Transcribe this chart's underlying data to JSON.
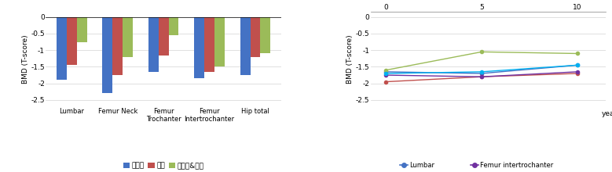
{
  "bar": {
    "categories": [
      "Lumbar",
      "Femur Neck",
      "Femur\nTrochanter",
      "Femur\nIntertrochanter",
      "Hip total"
    ],
    "series": {
      "저체중": [
        -1.9,
        -2.3,
        -1.65,
        -1.85,
        -1.75
      ],
      "정상": [
        -1.45,
        -1.75,
        -1.15,
        -1.65,
        -1.2
      ],
      "과체중&비만": [
        -0.75,
        -1.2,
        -0.55,
        -1.5,
        -1.1
      ]
    },
    "colors": {
      "저체중": "#4472c4",
      "정상": "#c0504d",
      "과체중&비만": "#9bbb59"
    },
    "ylabel": "BMD (T-score)",
    "ylim": [
      -2.7,
      0.15
    ],
    "yticks": [
      0,
      -0.5,
      -1,
      -1.5,
      -2,
      -2.5
    ]
  },
  "line": {
    "x": [
      0,
      5,
      10
    ],
    "series": {
      "Lumbar": [
        -1.65,
        -1.7,
        -1.45
      ],
      "Femur neck": [
        -1.95,
        -1.8,
        -1.7
      ],
      "Femur trochanter": [
        -1.6,
        -1.05,
        -1.1
      ],
      "Femur intertrochanter": [
        -1.75,
        -1.8,
        -1.65
      ],
      "Hip total": [
        -1.7,
        -1.65,
        -1.45
      ]
    },
    "colors": {
      "Lumbar": "#4472c4",
      "Femur neck": "#c0504d",
      "Femur trochanter": "#9bbb59",
      "Femur intertrochanter": "#7030a0",
      "Hip total": "#00b0f0"
    },
    "ylabel": "BMD (T-score)",
    "xlabel": "year",
    "ylim": [
      -2.7,
      0.15
    ],
    "yticks": [
      0,
      -0.5,
      -1,
      -1.5,
      -2,
      -2.5
    ],
    "xticks": [
      0,
      5,
      10
    ]
  }
}
